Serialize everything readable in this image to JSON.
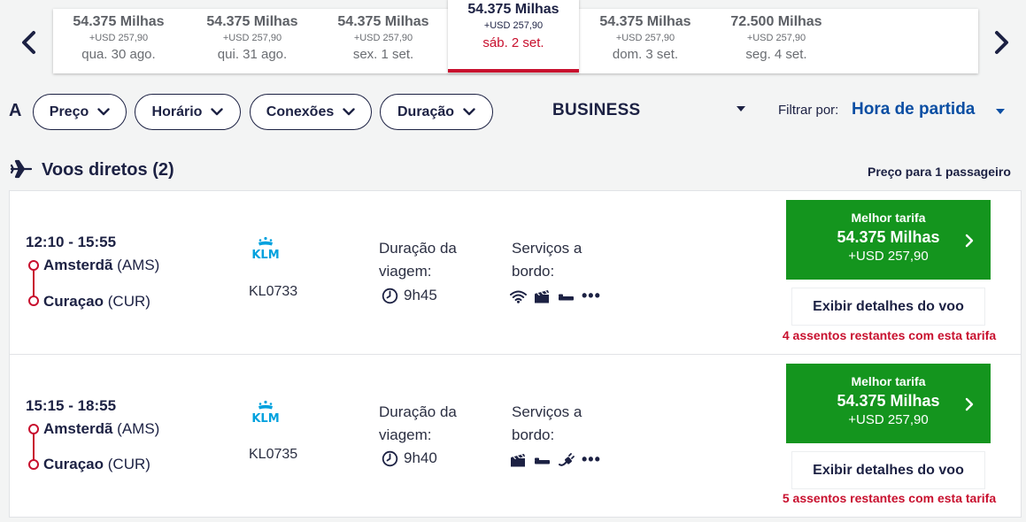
{
  "dates": [
    {
      "miles": "54.375 Milhas",
      "usd": "+USD 257,90",
      "day": "qua. 30 ago.",
      "selected": false
    },
    {
      "miles": "54.375 Milhas",
      "usd": "+USD 257,90",
      "day": "qui. 31 ago.",
      "selected": false
    },
    {
      "miles": "54.375 Milhas",
      "usd": "+USD 257,90",
      "day": "sex. 1 set.",
      "selected": false
    },
    {
      "miles": "54.375 Milhas",
      "usd": "+USD 257,90",
      "day": "sáb. 2 set.",
      "selected": true
    },
    {
      "miles": "54.375 Milhas",
      "usd": "+USD 257,90",
      "day": "dom. 3 set.",
      "selected": false
    },
    {
      "miles": "72.500 Milhas",
      "usd": "+USD 257,90",
      "day": "seg. 4 set.",
      "selected": false
    }
  ],
  "filters": {
    "letter": "A",
    "pills": [
      "Preço",
      "Horário",
      "Conexões",
      "Duração"
    ],
    "cabin": "BUSINESS",
    "sort_label": "Filtrar por:",
    "sort_value": "Hora de partida"
  },
  "section": {
    "title": "Voos diretos (2)",
    "price_note_prefix": "Preço para ",
    "price_note_count": "1",
    "price_note_suffix": " passageiro"
  },
  "flights": [
    {
      "times": "12:10 - 15:55",
      "origin_city": "Amsterdã",
      "origin_code": "(AMS)",
      "dest_city": "Curaçao",
      "dest_code": "(CUR)",
      "airline": "KLM",
      "flight_number": "KL0733",
      "duration_label": "Duração da viagem:",
      "duration": "9h45",
      "services_label": "Serviços a bordo:",
      "services": [
        "wifi-icon",
        "entertainment-icon",
        "flat-bed-icon"
      ],
      "more": "•••",
      "fare_label": "Melhor tarifa",
      "fare_miles": "54.375 Milhas",
      "fare_usd": "+USD 257,90",
      "details_label": "Exibir detalhes do voo",
      "seats_note": "4 assentos restantes com esta tarifa"
    },
    {
      "times": "15:15 - 18:55",
      "origin_city": "Amsterdã",
      "origin_code": "(AMS)",
      "dest_city": "Curaçao",
      "dest_code": "(CUR)",
      "airline": "KLM",
      "flight_number": "KL0735",
      "duration_label": "Duração da viagem:",
      "duration": "9h40",
      "services_label": "Serviços a bordo:",
      "services": [
        "entertainment-icon",
        "flat-bed-icon",
        "power-outlet-icon"
      ],
      "more": "•••",
      "fare_label": "Melhor tarifa",
      "fare_miles": "54.375 Milhas",
      "fare_usd": "+USD 257,90",
      "details_label": "Exibir detalhes do voo",
      "seats_note": "5 assentos restantes com esta tarifa"
    }
  ],
  "colors": {
    "brand_navy": "#1c2143",
    "accent_red": "#c8102e",
    "fare_green": "#14951e",
    "link_blue": "#0a4ea3",
    "klm_blue": "#00a1de"
  }
}
